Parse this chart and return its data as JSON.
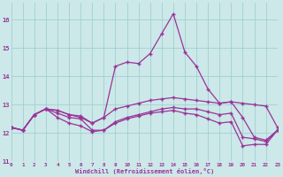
{
  "xlabel": "Windchill (Refroidissement éolien,°C)",
  "background_color": "#cce8e8",
  "grid_color": "#99cccc",
  "line_color": "#993399",
  "xlim": [
    0,
    23
  ],
  "ylim": [
    11.0,
    16.6
  ],
  "yticks": [
    11,
    12,
    13,
    14,
    15,
    16
  ],
  "xticks": [
    0,
    1,
    2,
    3,
    4,
    5,
    6,
    7,
    8,
    9,
    10,
    11,
    12,
    13,
    14,
    15,
    16,
    17,
    18,
    19,
    20,
    21,
    22,
    23
  ],
  "lines": [
    [
      12.2,
      12.1,
      12.65,
      12.85,
      12.8,
      12.65,
      12.6,
      12.35,
      12.55,
      12.85,
      12.95,
      13.05,
      13.15,
      13.2,
      13.25,
      13.2,
      13.15,
      13.1,
      13.05,
      13.1,
      13.05,
      13.0,
      12.95,
      12.2
    ],
    [
      12.2,
      12.1,
      12.65,
      12.85,
      12.8,
      12.65,
      12.55,
      12.35,
      12.55,
      14.35,
      14.5,
      14.45,
      14.8,
      15.5,
      16.2,
      14.85,
      14.35,
      13.55,
      13.05,
      13.1,
      12.55,
      11.85,
      11.75,
      12.1
    ],
    [
      12.2,
      12.1,
      12.65,
      12.85,
      12.7,
      12.55,
      12.5,
      12.1,
      12.1,
      12.4,
      12.55,
      12.65,
      12.75,
      12.85,
      12.9,
      12.85,
      12.85,
      12.75,
      12.65,
      12.7,
      11.85,
      11.8,
      11.7,
      12.1
    ],
    [
      12.2,
      12.1,
      12.65,
      12.85,
      12.55,
      12.35,
      12.25,
      12.05,
      12.1,
      12.35,
      12.5,
      12.6,
      12.7,
      12.75,
      12.8,
      12.7,
      12.65,
      12.5,
      12.35,
      12.4,
      11.55,
      11.6,
      11.6,
      12.1
    ]
  ]
}
